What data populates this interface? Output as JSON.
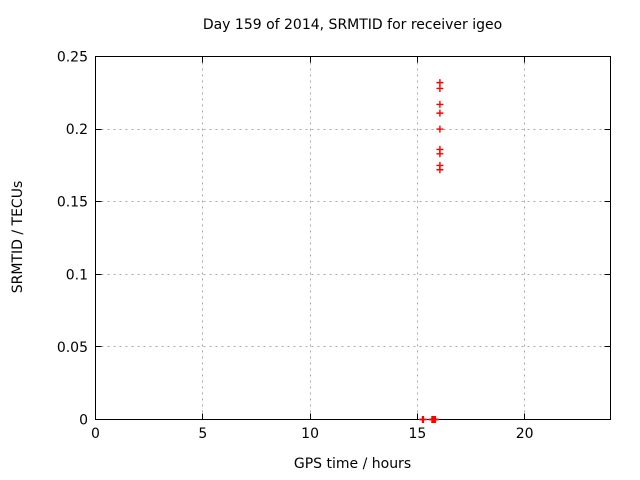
{
  "page": {
    "background": "#ffffff"
  },
  "chart_data": {
    "type": "scatter",
    "title": "Day 159 of 2014, SRMTID for receiver igeo",
    "xlabel": "GPS time / hours",
    "ylabel": "SRMTID / TECUs",
    "xlim": [
      0,
      24
    ],
    "ylim": [
      0,
      0.25
    ],
    "xticks": [
      {
        "value": 0,
        "label": "0"
      },
      {
        "value": 5,
        "label": "5"
      },
      {
        "value": 10,
        "label": "10"
      },
      {
        "value": 15,
        "label": "15"
      },
      {
        "value": 20,
        "label": "20"
      }
    ],
    "yticks": [
      {
        "value": 0,
        "label": "0"
      },
      {
        "value": 0.05,
        "label": "0.05"
      },
      {
        "value": 0.1,
        "label": "0.1"
      },
      {
        "value": 0.15,
        "label": "0.15"
      },
      {
        "value": 0.2,
        "label": "0.2"
      },
      {
        "value": 0.25,
        "label": "0.25"
      }
    ],
    "grid": true,
    "legend": "none",
    "marker": "plus",
    "colors": {
      "marker": "#ff0000",
      "grid": "#a8a8a8",
      "axis": "#000000",
      "text": "#000000"
    },
    "series": [
      {
        "name": "SRMTID",
        "points": [
          [
            15.24,
            0
          ],
          [
            15.28,
            0
          ],
          [
            15.68,
            0
          ],
          [
            15.72,
            0
          ],
          [
            15.76,
            0
          ],
          [
            15.8,
            0
          ],
          [
            15.84,
            0
          ],
          [
            16.05,
            0.172
          ],
          [
            16.05,
            0.175
          ],
          [
            16.05,
            0.183
          ],
          [
            16.05,
            0.186
          ],
          [
            16.05,
            0.2
          ],
          [
            16.05,
            0.211
          ],
          [
            16.05,
            0.217
          ],
          [
            16.05,
            0.228
          ],
          [
            16.05,
            0.232
          ]
        ]
      }
    ]
  }
}
